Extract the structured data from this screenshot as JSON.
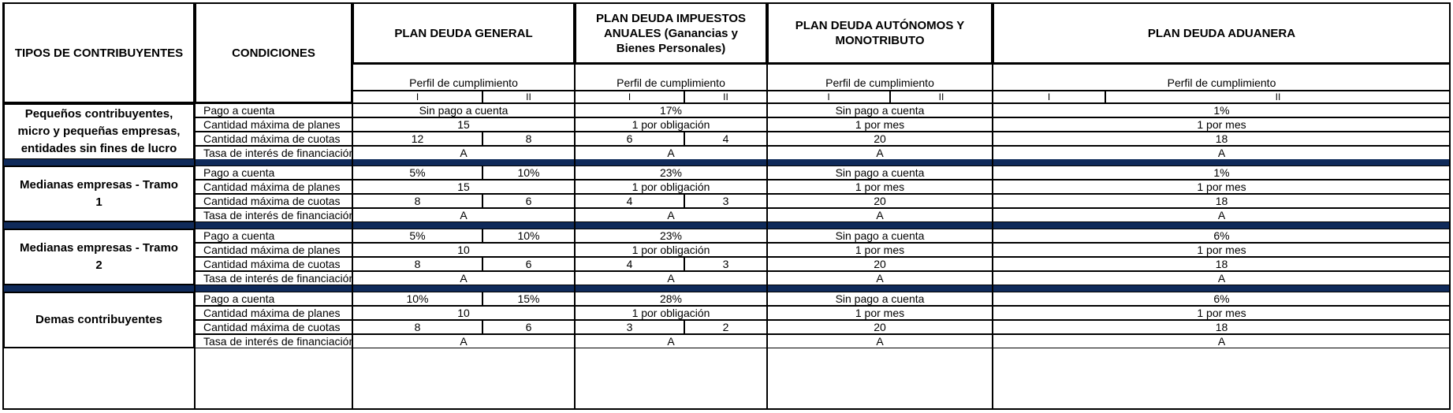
{
  "header": {
    "tipos": "TIPOS DE CONTRIBUYENTES",
    "condiciones": "CONDICIONES",
    "plans": [
      {
        "title": "PLAN DEUDA GENERAL"
      },
      {
        "title": "PLAN DEUDA IMPUESTOS ANUALES (Ganancias y Bienes Personales)"
      },
      {
        "title": "PLAN DEUDA AUTÓNOMOS Y MONOTRIBUTO"
      },
      {
        "title": "PLAN DEUDA ADUANERA"
      }
    ],
    "perfil": "Perfil de cumplimiento",
    "profile_i": "I",
    "profile_ii": "II"
  },
  "groups": [
    {
      "name": "Pequeños contribuyentes, micro y pequeñas empresas, entidades sin fines de lucro",
      "rows": [
        {
          "label": "Pago a cuenta",
          "general": [
            "Sin pago a cuenta"
          ],
          "anuales": [
            "17%"
          ],
          "autonomos": "Sin pago a cuenta",
          "aduanera": "1%"
        },
        {
          "label": "Cantidad máxima de planes",
          "general": [
            "15"
          ],
          "anuales": [
            "1 por obligación"
          ],
          "autonomos": "1 por mes",
          "aduanera": "1 por mes"
        },
        {
          "label": "Cantidad máxima de cuotas",
          "general": [
            "12",
            "8"
          ],
          "anuales": [
            "6",
            "4"
          ],
          "autonomos": "20",
          "aduanera": "18"
        },
        {
          "label": "Tasa de interés de financiación",
          "general": [
            "A"
          ],
          "anuales": [
            "A"
          ],
          "autonomos": "A",
          "aduanera": "A"
        }
      ]
    },
    {
      "name": "Medianas empresas - Tramo 1",
      "rows": [
        {
          "label": "Pago a cuenta",
          "general": [
            "5%",
            "10%"
          ],
          "anuales": [
            "23%"
          ],
          "autonomos": "Sin pago a cuenta",
          "aduanera": "1%"
        },
        {
          "label": "Cantidad máxima de planes",
          "general": [
            "15"
          ],
          "anuales": [
            "1 por obligación"
          ],
          "autonomos": "1 por mes",
          "aduanera": "1 por mes"
        },
        {
          "label": "Cantidad máxima de cuotas",
          "general": [
            "8",
            "6"
          ],
          "anuales": [
            "4",
            "3"
          ],
          "autonomos": "20",
          "aduanera": "18"
        },
        {
          "label": "Tasa de interés de financiación",
          "general": [
            "A"
          ],
          "anuales": [
            "A"
          ],
          "autonomos": "A",
          "aduanera": "A"
        }
      ]
    },
    {
      "name": "Medianas empresas - Tramo 2",
      "rows": [
        {
          "label": "Pago a cuenta",
          "general": [
            "5%",
            "10%"
          ],
          "anuales": [
            "23%"
          ],
          "autonomos": "Sin pago a cuenta",
          "aduanera": "6%"
        },
        {
          "label": "Cantidad máxima de planes",
          "general": [
            "10"
          ],
          "anuales": [
            "1 por obligación"
          ],
          "autonomos": "1 por mes",
          "aduanera": "1 por mes"
        },
        {
          "label": "Cantidad máxima de cuotas",
          "general": [
            "8",
            "6"
          ],
          "anuales": [
            "4",
            "3"
          ],
          "autonomos": "20",
          "aduanera": "18"
        },
        {
          "label": "Tasa de interés de financiación",
          "general": [
            "A"
          ],
          "anuales": [
            "A"
          ],
          "autonomos": "A",
          "aduanera": "A"
        }
      ]
    },
    {
      "name": "Demas contribuyentes",
      "rows": [
        {
          "label": "Pago a cuenta",
          "general": [
            "10%",
            "15%"
          ],
          "anuales": [
            "28%"
          ],
          "autonomos": "Sin pago a cuenta",
          "aduanera": "6%"
        },
        {
          "label": "Cantidad máxima de planes",
          "general": [
            "10"
          ],
          "anuales": [
            "1 por obligación"
          ],
          "autonomos": "1 por mes",
          "aduanera": "1 por mes"
        },
        {
          "label": "Cantidad máxima de cuotas",
          "general": [
            "8",
            "6"
          ],
          "anuales": [
            "3",
            "2"
          ],
          "autonomos": "20",
          "aduanera": "18"
        },
        {
          "label": "Tasa de interés de financiación",
          "general": [
            "A"
          ],
          "anuales": [
            "A"
          ],
          "autonomos": "A",
          "aduanera": "A"
        }
      ]
    }
  ],
  "colors": {
    "separator": "#0f2a5a",
    "border": "#000000"
  }
}
